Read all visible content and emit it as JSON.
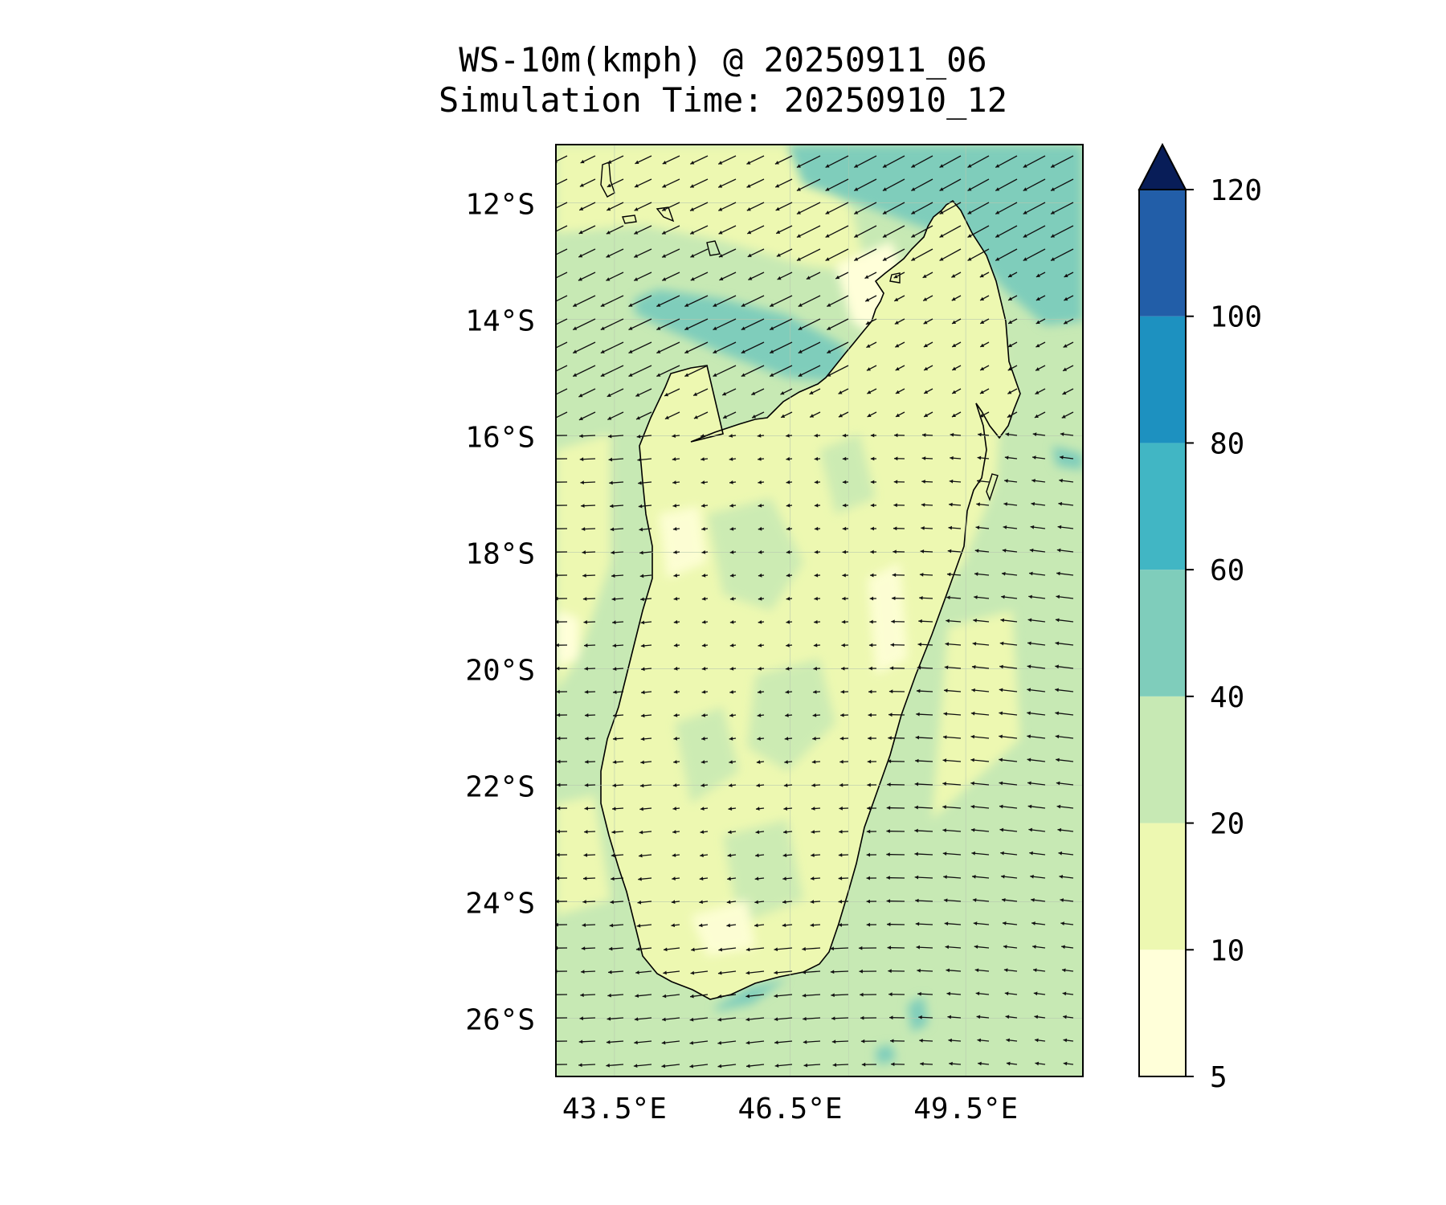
{
  "title": {
    "line1": "WS-10m(kmph) @ 20250911_06",
    "line2": "Simulation Time: 20250910_12"
  },
  "map": {
    "lat_ticks": [
      "12°S",
      "14°S",
      "16°S",
      "18°S",
      "20°S",
      "22°S",
      "24°S",
      "26°S"
    ],
    "lon_ticks": [
      "43.5°E",
      "46.5°E",
      "49.5°E"
    ],
    "lat_range": [
      -27.0,
      -11.0
    ],
    "lon_range": [
      42.5,
      51.5
    ],
    "grid": true,
    "background_level": "20-40 kmph"
  },
  "colorbar": {
    "ticks": [
      "5",
      "10",
      "20",
      "40",
      "60",
      "80",
      "100",
      "120"
    ],
    "colors": [
      "#ffffd9",
      "#edf8b1",
      "#c7e9b4",
      "#7fcdbb",
      "#41b6c4",
      "#1d91c0",
      "#225ea8",
      "#253494"
    ],
    "extend_color": "#081d58",
    "extend": "max"
  },
  "chart_data": {
    "type": "heatmap",
    "variable": "WS-10m(kmph)",
    "levels": [
      5,
      10,
      20,
      40,
      60,
      80,
      100,
      120
    ],
    "colorscale": "YlGnBu",
    "vectors": "wind direction arrows (predominantly easterly/south-easterly)",
    "high_wind_regions": [
      {
        "area": "northeast offshore",
        "range": "40-60 kmph"
      },
      {
        "area": "northwest channel (Mozambique Channel, ~14.5°S)",
        "range": "40-60 kmph"
      }
    ]
  }
}
